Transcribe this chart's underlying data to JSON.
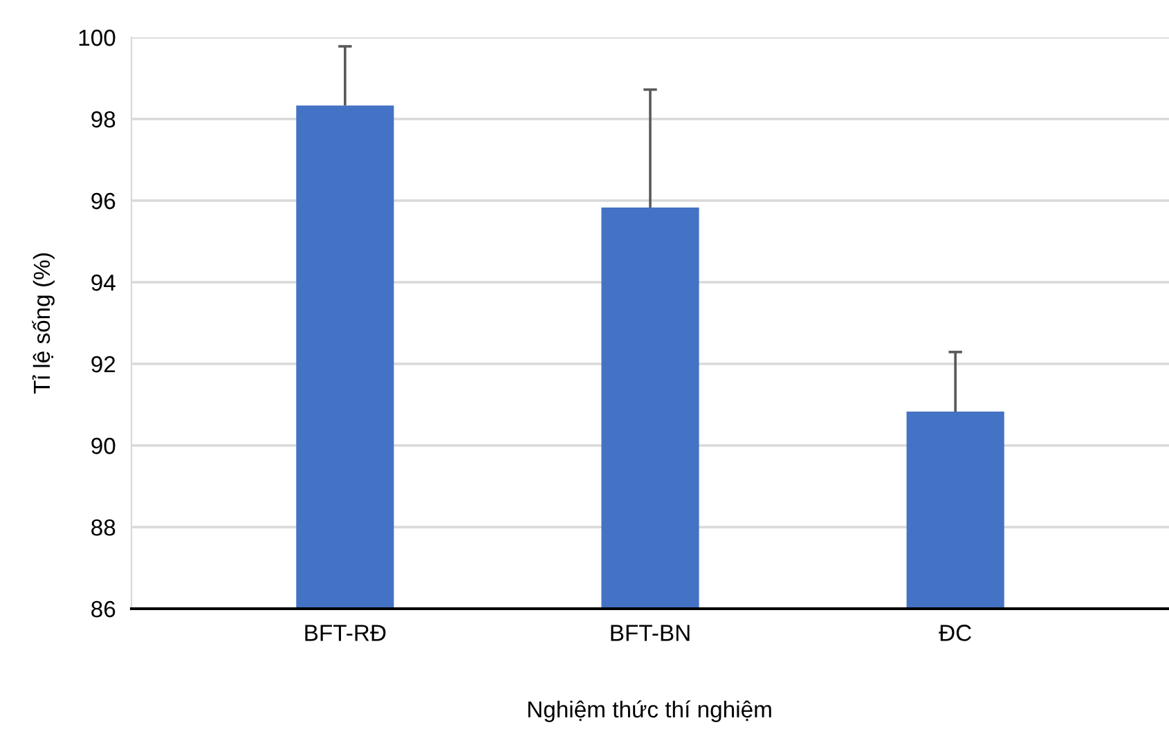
{
  "chart_data": {
    "type": "bar",
    "xlabel": "Nghiệm thức thí nghiệm",
    "ylabel": "Tỉ lệ sống (%)",
    "categories": [
      "BFT-RĐ",
      "BFT-BN",
      "ĐC"
    ],
    "values": [
      98.33,
      95.83,
      90.83
    ],
    "errors": [
      [
        98.33,
        99.78
      ],
      [
        95.83,
        98.72
      ],
      [
        90.83,
        92.29
      ]
    ],
    "color": "#4472c4",
    "ylim": [
      86,
      100
    ],
    "yticks": [
      86,
      88,
      90,
      92,
      94,
      96,
      98,
      100
    ],
    "grid": "y"
  }
}
